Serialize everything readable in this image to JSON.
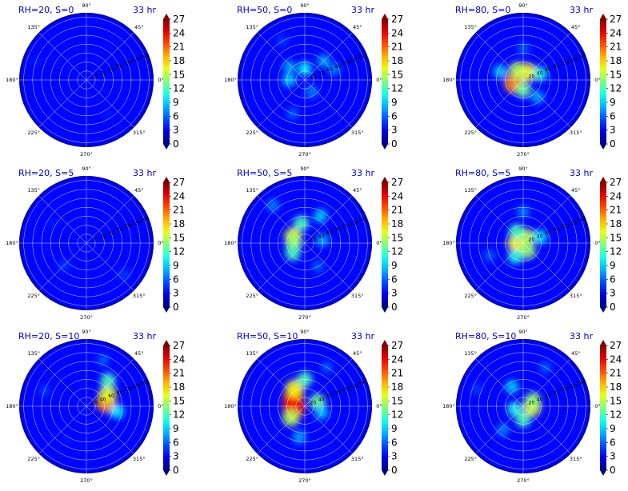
{
  "figure": {
    "colormap": "jet",
    "colors": {
      "title": "#0000cc",
      "grid": "#ffffff",
      "background": "#ffffff"
    },
    "colorbar_ticks": [
      "0",
      "3",
      "6",
      "9",
      "12",
      "15",
      "18",
      "21",
      "24",
      "27"
    ],
    "angle_labels": [
      "0°",
      "45°",
      "90°",
      "135°",
      "180°",
      "225°",
      "270°",
      "315°"
    ],
    "radial_labels": [
      "20",
      "40",
      "60",
      "80",
      "100",
      "120",
      "140"
    ]
  },
  "chart_data": [
    {
      "type": "heatmap",
      "projection": "polar",
      "title_left": "RH=20, S=0",
      "title_right": "33 hr",
      "vmin": 0,
      "vmax": 27,
      "blobs": [
        {
          "angle_deg": 160,
          "radius": 120,
          "value": 4
        },
        {
          "angle_deg": 300,
          "radius": 90,
          "value": 4
        },
        {
          "angle_deg": 260,
          "radius": 60,
          "value": 3
        },
        {
          "angle_deg": 40,
          "radius": 100,
          "value": 3
        },
        {
          "angle_deg": 200,
          "radius": 140,
          "value": 3
        }
      ]
    },
    {
      "type": "heatmap",
      "projection": "polar",
      "title_left": "RH=50, S=0",
      "title_right": "33 hr",
      "vmin": 0,
      "vmax": 27,
      "blobs": [
        {
          "angle_deg": 90,
          "radius": 25,
          "value": 10
        },
        {
          "angle_deg": 180,
          "radius": 35,
          "value": 9
        },
        {
          "angle_deg": 45,
          "radius": 60,
          "value": 8
        },
        {
          "angle_deg": 20,
          "radius": 70,
          "value": 7
        },
        {
          "angle_deg": 140,
          "radius": 45,
          "value": 8
        },
        {
          "angle_deg": 300,
          "radius": 30,
          "value": 7
        },
        {
          "angle_deg": 250,
          "radius": 80,
          "value": 6
        },
        {
          "angle_deg": 120,
          "radius": 100,
          "value": 5
        }
      ]
    },
    {
      "type": "heatmap",
      "projection": "polar",
      "title_left": "RH=80, S=0",
      "title_right": "33 hr",
      "vmin": 0,
      "vmax": 27,
      "blobs": [
        {
          "angle_deg": 200,
          "radius": 22,
          "value": 20
        },
        {
          "angle_deg": 60,
          "radius": 20,
          "value": 17
        },
        {
          "angle_deg": 120,
          "radius": 25,
          "value": 15
        },
        {
          "angle_deg": 270,
          "radius": 22,
          "value": 13
        },
        {
          "angle_deg": 20,
          "radius": 40,
          "value": 11
        },
        {
          "angle_deg": 160,
          "radius": 55,
          "value": 9
        },
        {
          "angle_deg": 310,
          "radius": 50,
          "value": 8
        },
        {
          "angle_deg": 90,
          "radius": 70,
          "value": 6
        }
      ]
    },
    {
      "type": "heatmap",
      "projection": "polar",
      "title_left": "RH=20, S=5",
      "title_right": "33 hr",
      "vmin": 0,
      "vmax": 27,
      "blobs": [
        {
          "angle_deg": 225,
          "radius": 70,
          "value": 5
        },
        {
          "angle_deg": 320,
          "radius": 110,
          "value": 5
        },
        {
          "angle_deg": 150,
          "radius": 90,
          "value": 4
        },
        {
          "angle_deg": 60,
          "radius": 120,
          "value": 3
        },
        {
          "angle_deg": 270,
          "radius": 130,
          "value": 3
        }
      ]
    },
    {
      "type": "heatmap",
      "projection": "polar",
      "title_left": "RH=50, S=5",
      "title_right": "33 hr",
      "vmin": 0,
      "vmax": 27,
      "blobs": [
        {
          "angle_deg": 150,
          "radius": 30,
          "value": 16
        },
        {
          "angle_deg": 180,
          "radius": 25,
          "value": 14
        },
        {
          "angle_deg": 100,
          "radius": 45,
          "value": 12
        },
        {
          "angle_deg": 220,
          "radius": 35,
          "value": 12
        },
        {
          "angle_deg": 60,
          "radius": 70,
          "value": 9
        },
        {
          "angle_deg": 130,
          "radius": 110,
          "value": 7
        },
        {
          "angle_deg": 300,
          "radius": 60,
          "value": 6
        },
        {
          "angle_deg": 10,
          "radius": 40,
          "value": 8
        }
      ]
    },
    {
      "type": "heatmap",
      "projection": "polar",
      "title_left": "RH=80, S=5",
      "title_right": "33 hr",
      "vmin": 0,
      "vmax": 27,
      "blobs": [
        {
          "angle_deg": 180,
          "radius": 15,
          "value": 17
        },
        {
          "angle_deg": 60,
          "radius": 15,
          "value": 15
        },
        {
          "angle_deg": 300,
          "radius": 20,
          "value": 14
        },
        {
          "angle_deg": 120,
          "radius": 30,
          "value": 12
        },
        {
          "angle_deg": 240,
          "radius": 35,
          "value": 11
        },
        {
          "angle_deg": 20,
          "radius": 40,
          "value": 10
        },
        {
          "angle_deg": 90,
          "radius": 70,
          "value": 7
        },
        {
          "angle_deg": 200,
          "radius": 80,
          "value": 6
        }
      ]
    },
    {
      "type": "heatmap",
      "projection": "polar",
      "title_left": "RH=20, S=10",
      "title_right": "33 hr",
      "vmin": 0,
      "vmax": 27,
      "blobs": [
        {
          "angle_deg": 10,
          "radius": 45,
          "value": 20
        },
        {
          "angle_deg": 30,
          "radius": 55,
          "value": 16
        },
        {
          "angle_deg": 50,
          "radius": 75,
          "value": 12
        },
        {
          "angle_deg": 350,
          "radius": 70,
          "value": 10
        },
        {
          "angle_deg": 70,
          "radius": 110,
          "value": 6
        },
        {
          "angle_deg": 160,
          "radius": 100,
          "value": 5
        },
        {
          "angle_deg": 240,
          "radius": 90,
          "value": 4
        }
      ]
    },
    {
      "type": "heatmap",
      "projection": "polar",
      "title_left": "RH=50, S=10",
      "title_right": "33 hr",
      "vmin": 0,
      "vmax": 27,
      "blobs": [
        {
          "angle_deg": 150,
          "radius": 30,
          "value": 22
        },
        {
          "angle_deg": 190,
          "radius": 25,
          "value": 24
        },
        {
          "angle_deg": 120,
          "radius": 45,
          "value": 17
        },
        {
          "angle_deg": 220,
          "radius": 40,
          "value": 15
        },
        {
          "angle_deg": 90,
          "radius": 60,
          "value": 12
        },
        {
          "angle_deg": 20,
          "radius": 30,
          "value": 13
        },
        {
          "angle_deg": 340,
          "radius": 40,
          "value": 9
        },
        {
          "angle_deg": 260,
          "radius": 70,
          "value": 8
        },
        {
          "angle_deg": 60,
          "radius": 100,
          "value": 6
        }
      ]
    },
    {
      "type": "heatmap",
      "projection": "polar",
      "title_left": "RH=80, S=10",
      "title_right": "33 hr",
      "vmin": 0,
      "vmax": 27,
      "blobs": [
        {
          "angle_deg": 350,
          "radius": 20,
          "value": 16
        },
        {
          "angle_deg": 30,
          "radius": 25,
          "value": 14
        },
        {
          "angle_deg": 270,
          "radius": 30,
          "value": 12
        },
        {
          "angle_deg": 200,
          "radius": 20,
          "value": 11
        },
        {
          "angle_deg": 120,
          "radius": 50,
          "value": 9
        },
        {
          "angle_deg": 230,
          "radius": 70,
          "value": 7
        },
        {
          "angle_deg": 60,
          "radius": 100,
          "value": 6
        },
        {
          "angle_deg": 160,
          "radius": 110,
          "value": 5
        }
      ]
    }
  ]
}
